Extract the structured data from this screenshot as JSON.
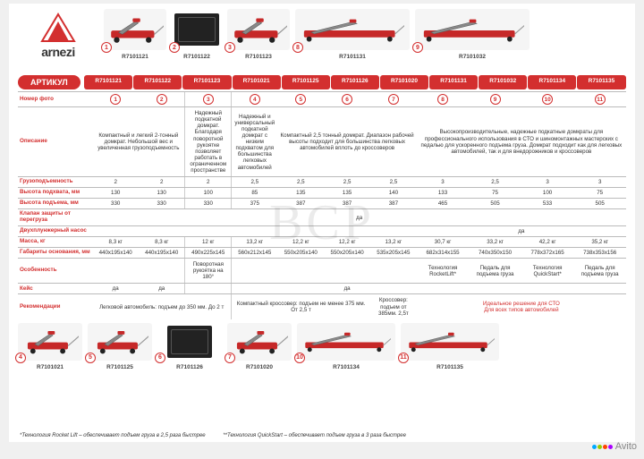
{
  "brand": "arnezi",
  "colors": {
    "accent": "#d32f2f",
    "text": "#333333",
    "bg": "#ffffff"
  },
  "top_products": [
    {
      "num": "1",
      "sku": "R7101121",
      "w": 70,
      "h": 46,
      "kind": "jack"
    },
    {
      "num": "2",
      "sku": "R7101122",
      "w": 56,
      "h": 46,
      "kind": "case"
    },
    {
      "num": "3",
      "sku": "R7101123",
      "w": 70,
      "h": 46,
      "kind": "jack"
    },
    {
      "num": "8",
      "sku": "R7101131",
      "w": 128,
      "h": 46,
      "kind": "jack-long"
    },
    {
      "num": "9",
      "sku": "R7101032",
      "w": 128,
      "h": 46,
      "kind": "jack-long"
    }
  ],
  "article_label": "АРТИКУЛ",
  "sku_header": [
    "R7101121",
    "R7101122",
    "R7101123",
    "R7101021",
    "R7101125",
    "R7101126",
    "R7101020",
    "R7101131",
    "R7101032",
    "R7101134",
    "R7101135"
  ],
  "rows": {
    "photo": {
      "label": "Номер фото",
      "nums": [
        "1",
        "2",
        "3",
        "4",
        "5",
        "6",
        "7",
        "8",
        "9",
        "10",
        "11"
      ]
    },
    "desc": {
      "label": "Описание",
      "g1": "Компактный и легкий 2-тонный домкрат. Небольшой вес и увеличенная грузоподъемность",
      "g2": "Надежный подкатной домкрат. Благодаря поворотной рукоятке позволяет работать в ограниченном пространстве",
      "g3": "Надежный и универсальный подкатной домкрат с низким подхватом для большинства легковых автомобилей",
      "g4": "Компактный 2,5 тонный домкрат. Диапазон рабочей высоты подходит для большинства легковых автомобилей вплоть до кроссоверов",
      "g5": "Высокопроизводительные, надежные подкатные домкраты для профессионального использования в СТО и шиномонтажных мастерских с педалью для ускоренного подъема груза. Домкрат подходит как для легковых автомобилей, так и для внедорожников и кроссоверов"
    },
    "capacity": {
      "label": "Грузоподъемность",
      "v": [
        "2",
        "2",
        "2",
        "2,5",
        "2,5",
        "2,5",
        "2,5",
        "3",
        "2,5",
        "3",
        "3"
      ]
    },
    "lift_min": {
      "label": "Высота подхвата, мм",
      "v": [
        "130",
        "130",
        "100",
        "85",
        "135",
        "135",
        "140",
        "133",
        "75",
        "100",
        "75"
      ]
    },
    "lift_max": {
      "label": "Высота подъема, мм",
      "v": [
        "330",
        "330",
        "330",
        "375",
        "387",
        "387",
        "387",
        "465",
        "505",
        "533",
        "505"
      ]
    },
    "valve": {
      "label": "Клапан защиты от перегруза",
      "span_all": "да"
    },
    "pump": {
      "label": "Двухплунжерный насос",
      "right": "да"
    },
    "mass": {
      "label": "Масса, кг",
      "v": [
        "8,3 кг",
        "8,3 кг",
        "12 кг",
        "13,2 кг",
        "12,2 кг",
        "12,2 кг",
        "13,2 кг",
        "30,7 кг",
        "33,2 кг",
        "42,2 кг",
        "35,2 кг"
      ]
    },
    "base": {
      "label": "Габариты основания, мм",
      "v": [
        "440x195x140",
        "440x195x140",
        "490x225x145",
        "560x212x145",
        "550x205x140",
        "550x205x140",
        "535x205x145",
        "682x314x155",
        "740x350x150",
        "778x372x165",
        "738x353x156"
      ]
    },
    "feature": {
      "label": "Особенность",
      "c3": "Поворотная рукоятка на 180°",
      "c8": "Технология RocketLift*",
      "c10": "Технология QuickStart*",
      "pedal": "Педаль для подъема груза"
    },
    "case": {
      "label": "Кейс",
      "c1": "да",
      "c2": "да",
      "c6": "да"
    },
    "rec": {
      "label": "Рекомендации",
      "c1": "Легковой автомобиль: подъем до 350 мм. До 2 т",
      "c4": "Компактный кроссовер: подъем не менее 375 мм. От 2,5 т",
      "c7": "Кроссовер: подъем от 385мм. 2,5т",
      "right": "Идеальное решение для СТО\nДля всех типов автомобилей"
    }
  },
  "bottom_products": [
    {
      "num": "4",
      "sku": "R7101021",
      "kind": "jack"
    },
    {
      "num": "5",
      "sku": "R7101125",
      "kind": "jack"
    },
    {
      "num": "6",
      "sku": "R7101126",
      "kind": "case"
    },
    {
      "num": "7",
      "sku": "R7101020",
      "kind": "jack"
    },
    {
      "num": "10",
      "sku": "R7101134",
      "kind": "jack-long"
    },
    {
      "num": "11",
      "sku": "R7101135",
      "kind": "jack-long"
    }
  ],
  "footnote1": "*Технология Rocket Lift – обеспечивает подъем груза в 2,5 раза быстрее",
  "footnote2": "**Технология QuickStart – обеспечивает подъем груза в 3 раза быстрее",
  "watermark": "BCP",
  "avito": "Avito"
}
